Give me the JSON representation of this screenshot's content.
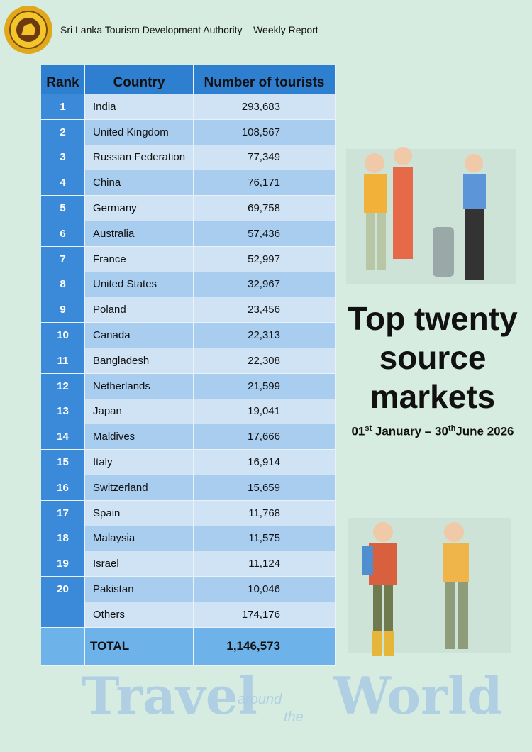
{
  "header": {
    "title": "Sri Lanka Tourism Development Authority – Weekly Report"
  },
  "table": {
    "columns": [
      "Rank",
      "Country",
      "Number of tourists"
    ],
    "rows": [
      [
        "1",
        "India",
        "293,683"
      ],
      [
        "2",
        "United Kingdom",
        "108,567"
      ],
      [
        "3",
        "Russian Federation",
        "77,349"
      ],
      [
        "4",
        "China",
        "76,171"
      ],
      [
        "5",
        "Germany",
        "69,758"
      ],
      [
        "6",
        "Australia",
        "57,436"
      ],
      [
        "7",
        "France",
        "52,997"
      ],
      [
        "8",
        "United States",
        "32,967"
      ],
      [
        "9",
        "Poland",
        "23,456"
      ],
      [
        "10",
        "Canada",
        "22,313"
      ],
      [
        "11",
        "Bangladesh",
        "22,308"
      ],
      [
        "12",
        "Netherlands",
        "21,599"
      ],
      [
        "13",
        "Japan",
        "19,041"
      ],
      [
        "14",
        "Maldives",
        "17,666"
      ],
      [
        "15",
        "Italy",
        "16,914"
      ],
      [
        "16",
        "Switzerland",
        "15,659"
      ],
      [
        "17",
        "Spain",
        "11,768"
      ],
      [
        "18",
        "Malaysia",
        "11,575"
      ],
      [
        "19",
        "Israel",
        "11,124"
      ],
      [
        "20",
        "Pakistan",
        "10,046"
      ]
    ],
    "others": {
      "country": "Others",
      "value": "174,176"
    },
    "total": {
      "label": "TOTAL",
      "value": "1,146,573"
    }
  },
  "side": {
    "title_lines": [
      "Top twenty",
      "source",
      "markets"
    ],
    "date": {
      "start_day": "01",
      "start_suffix": "st",
      "middle": " January – 30",
      "end_suffix": "th",
      "end": "June 2026"
    }
  },
  "banner": {
    "words": [
      "Travel",
      "around",
      "the",
      "World"
    ]
  }
}
